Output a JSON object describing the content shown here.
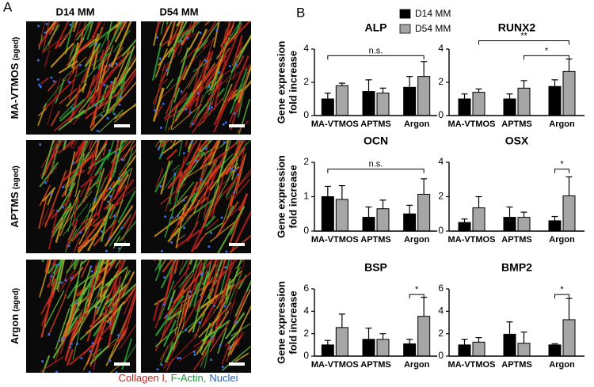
{
  "panel_a": {
    "label": "A",
    "columns": [
      "D14 MM",
      "D54 MM"
    ],
    "rows": [
      {
        "name": "MA-VTMOS",
        "qualifier": "(aged)"
      },
      {
        "name": "APTMS",
        "qualifier": "(aged)"
      },
      {
        "name": "Argon",
        "qualifier": "(aged)"
      }
    ],
    "legend": [
      {
        "text": "Collagen I,",
        "color": "#c8211f"
      },
      {
        "text": "F-Actin,",
        "color": "#1f9a3c"
      },
      {
        "text": "Nuclei",
        "color": "#1f5fbf"
      }
    ]
  },
  "panel_b": {
    "label": "B"
  },
  "chart_data": [
    {
      "type": "bar",
      "title": "ALP",
      "ylabel": [
        "Gene expression",
        "fold increase"
      ],
      "categories": [
        "MA-VTMOS",
        "APTMS",
        "Argon"
      ],
      "series": [
        {
          "name": "D14 MM",
          "color": "#000000",
          "values": [
            1.0,
            1.45,
            1.7
          ],
          "errors": [
            0.35,
            0.7,
            0.65
          ]
        },
        {
          "name": "D54 MM",
          "color": "#a6a6a6",
          "values": [
            1.8,
            1.35,
            2.35
          ],
          "errors": [
            0.15,
            0.3,
            0.9
          ]
        }
      ],
      "ylim": [
        0,
        4
      ],
      "yticks": [
        0,
        2,
        4
      ],
      "annotations": [
        {
          "label": "n.s.",
          "y": 3.6,
          "from": [
            "MA-VTMOS",
            "D14 MM"
          ],
          "to": [
            "Argon",
            "D54 MM"
          ]
        }
      ]
    },
    {
      "type": "bar",
      "title": "RUNX2",
      "categories": [
        "MA-VTMOS",
        "APTMS",
        "Argon"
      ],
      "series": [
        {
          "color": "#000000",
          "values": [
            1.0,
            1.0,
            1.75
          ],
          "errors": [
            0.3,
            0.3,
            0.4
          ]
        },
        {
          "color": "#a6a6a6",
          "values": [
            1.4,
            1.65,
            2.65
          ],
          "errors": [
            0.2,
            0.45,
            0.75
          ]
        }
      ],
      "ylim": [
        0,
        4
      ],
      "yticks": [
        0,
        2,
        4
      ],
      "annotations": [
        {
          "label": "**",
          "y": 4.5,
          "from": [
            "MA-VTMOS",
            "D54 MM"
          ],
          "to": [
            "Argon",
            "D54 MM"
          ]
        },
        {
          "label": "*",
          "y": 3.6,
          "from": [
            "APTMS",
            "D54 MM"
          ],
          "to": [
            "Argon",
            "D54 MM"
          ]
        }
      ]
    },
    {
      "type": "bar",
      "title": "OCN",
      "ylabel": [
        "Gene expression",
        "fold increase"
      ],
      "categories": [
        "MA-VTMOS",
        "APTMS",
        "Argon"
      ],
      "series": [
        {
          "color": "#000000",
          "values": [
            1.0,
            0.4,
            0.5
          ],
          "errors": [
            0.3,
            0.3,
            0.25
          ]
        },
        {
          "color": "#a6a6a6",
          "values": [
            0.92,
            0.65,
            1.07
          ],
          "errors": [
            0.4,
            0.25,
            0.45
          ]
        }
      ],
      "ylim": [
        0,
        2
      ],
      "yticks": [
        0,
        1,
        2
      ],
      "annotations": [
        {
          "label": "n.s.",
          "y": 1.8,
          "from": [
            "MA-VTMOS",
            "D14 MM"
          ],
          "to": [
            "Argon",
            "D54 MM"
          ]
        }
      ]
    },
    {
      "type": "bar",
      "title": "OSX",
      "categories": [
        "MA-VTMOS",
        "APTMS",
        "Argon"
      ],
      "series": [
        {
          "color": "#000000",
          "values": [
            0.5,
            0.8,
            0.6
          ],
          "errors": [
            0.2,
            0.6,
            0.25
          ]
        },
        {
          "color": "#a6a6a6",
          "values": [
            1.35,
            0.8,
            2.05
          ],
          "errors": [
            0.65,
            0.3,
            1.1
          ]
        }
      ],
      "ylim": [
        0,
        4
      ],
      "yticks": [
        0,
        2,
        4
      ],
      "annotations": [
        {
          "label": "*",
          "y": 3.6,
          "from": [
            "Argon",
            "D14 MM"
          ],
          "to": [
            "Argon",
            "D54 MM"
          ]
        }
      ]
    },
    {
      "type": "bar",
      "title": "BSP",
      "ylabel": [
        "Gene expression",
        "fold increase"
      ],
      "categories": [
        "MA-VTMOS",
        "APTMS",
        "Argon"
      ],
      "series": [
        {
          "color": "#000000",
          "values": [
            1.0,
            1.5,
            1.1
          ],
          "errors": [
            0.4,
            1.0,
            0.4
          ]
        },
        {
          "color": "#a6a6a6",
          "values": [
            2.55,
            1.5,
            3.55
          ],
          "errors": [
            1.2,
            0.5,
            1.7
          ]
        }
      ],
      "ylim": [
        0,
        6
      ],
      "yticks": [
        0,
        2,
        4,
        6
      ],
      "annotations": [
        {
          "label": "*",
          "y": 5.5,
          "from": [
            "Argon",
            "D14 MM"
          ],
          "to": [
            "Argon",
            "D54 MM"
          ]
        }
      ]
    },
    {
      "type": "bar",
      "title": "BMP2",
      "categories": [
        "MA-VTMOS",
        "APTMS",
        "Argon"
      ],
      "series": [
        {
          "color": "#000000",
          "values": [
            1.0,
            1.95,
            1.0
          ],
          "errors": [
            0.5,
            1.1,
            0.1
          ]
        },
        {
          "color": "#a6a6a6",
          "values": [
            1.25,
            1.15,
            3.25
          ],
          "errors": [
            0.4,
            1.0,
            1.9
          ]
        }
      ],
      "ylim": [
        0,
        6
      ],
      "yticks": [
        0,
        2,
        4,
        6
      ],
      "annotations": [
        {
          "label": "*",
          "y": 5.5,
          "from": [
            "Argon",
            "D14 MM"
          ],
          "to": [
            "Argon",
            "D54 MM"
          ]
        }
      ]
    }
  ]
}
